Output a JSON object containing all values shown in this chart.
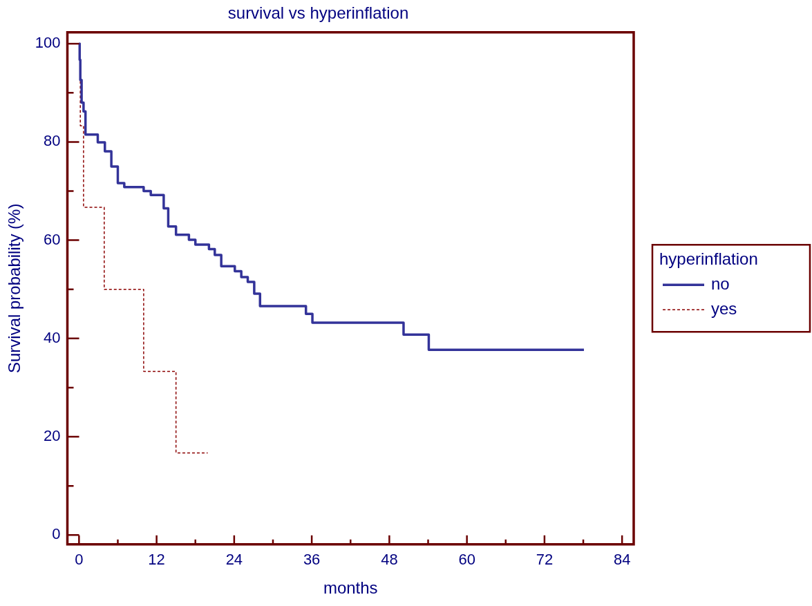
{
  "chart_data": {
    "type": "step",
    "title": "survival vs hyperinflation",
    "xlabel": "months",
    "ylabel": "Survival probability (%)",
    "legend_title": "hyperinflation",
    "legend": "right",
    "grid": false,
    "marker": "none",
    "xlim": [
      -1.8,
      85.8
    ],
    "ylim": [
      -1.9,
      102.3
    ],
    "xticks": [
      0,
      {
        "value": 6,
        "label": null
      },
      12,
      {
        "value": 18,
        "label": null
      },
      24,
      {
        "value": 30,
        "label": null
      },
      36,
      {
        "value": 42,
        "label": null
      },
      48,
      {
        "value": 54,
        "label": null
      },
      60,
      {
        "value": 66,
        "label": null
      },
      72,
      {
        "value": 78,
        "label": null
      },
      84
    ],
    "yticks": [
      0,
      {
        "value": 10,
        "label": null
      },
      20,
      {
        "value": 30,
        "label": null
      },
      40,
      {
        "value": 50,
        "label": null
      },
      60,
      {
        "value": 70,
        "label": null
      },
      80,
      {
        "value": 90,
        "label": null
      },
      100
    ],
    "series": [
      {
        "name": "no",
        "color": "#333399",
        "line_style": "solid",
        "x": [
          0,
          0.1,
          0.2,
          0.4,
          0.7,
          1.0,
          2.9,
          4.0,
          5.0,
          6.0,
          7.0,
          10.0,
          11.1,
          13.1,
          13.8,
          15.0,
          17.0,
          18.0,
          20.1,
          21.0,
          22.0,
          24.1,
          25.1,
          26.1,
          27.1,
          28.0,
          35.1,
          36.1,
          50.2,
          54.1,
          78.1
        ],
        "values": [
          100,
          96.7,
          92.6,
          88.0,
          86.2,
          81.5,
          79.9,
          78.1,
          75.0,
          71.6,
          70.8,
          70.0,
          69.2,
          66.5,
          62.8,
          61.1,
          60.1,
          59.1,
          58.2,
          57.0,
          54.7,
          53.7,
          52.5,
          51.5,
          49.1,
          46.6,
          45.0,
          43.2,
          40.8,
          37.7,
          37.7
        ]
      },
      {
        "name": "yes",
        "color": "#8b0000",
        "line_style": "dashed",
        "x": [
          0,
          0.2,
          0.7,
          3.9,
          10.0,
          15.0,
          19.9
        ],
        "values": [
          100,
          83.3,
          66.7,
          50.0,
          33.3,
          16.7,
          16.7
        ]
      }
    ]
  }
}
